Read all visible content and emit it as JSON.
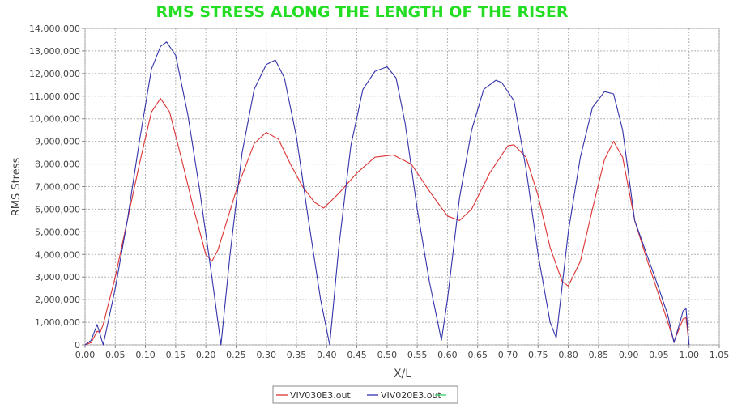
{
  "chart_data": {
    "type": "line",
    "title": "RMS STRESS ALONG THE LENGTH OF THE RISER",
    "xlabel": "X/L",
    "ylabel": "RMS Stress",
    "xlim": [
      0.0,
      1.05
    ],
    "ylim": [
      0,
      14000000
    ],
    "x_ticks": [
      "0.00",
      "0.05",
      "0.10",
      "0.15",
      "0.20",
      "0.25",
      "0.30",
      "0.35",
      "0.40",
      "0.45",
      "0.50",
      "0.55",
      "0.60",
      "0.65",
      "0.70",
      "0.75",
      "0.80",
      "0.85",
      "0.90",
      "0.95",
      "1.00",
      "1.05"
    ],
    "y_ticks": [
      "0",
      "1,000,000",
      "2,000,000",
      "3,000,000",
      "4,000,000",
      "5,000,000",
      "6,000,000",
      "7,000,000",
      "8,000,000",
      "9,000,000",
      "10,000,000",
      "11,000,000",
      "12,000,000",
      "13,000,000",
      "14,000,000"
    ],
    "grid": true,
    "legend_position": "bottom-center",
    "series": [
      {
        "name": "VIV030E3.out",
        "color": "#dd3333",
        "x": [
          0.0,
          0.01,
          0.02,
          0.025,
          0.03,
          0.05,
          0.07,
          0.09,
          0.11,
          0.125,
          0.14,
          0.16,
          0.18,
          0.2,
          0.21,
          0.22,
          0.25,
          0.28,
          0.3,
          0.32,
          0.34,
          0.36,
          0.38,
          0.395,
          0.42,
          0.45,
          0.48,
          0.51,
          0.54,
          0.57,
          0.6,
          0.62,
          0.64,
          0.67,
          0.7,
          0.71,
          0.73,
          0.75,
          0.77,
          0.79,
          0.8,
          0.82,
          0.84,
          0.86,
          0.875,
          0.89,
          0.91,
          0.93,
          0.95,
          0.965,
          0.975,
          0.985,
          0.99,
          0.995,
          1.0
        ],
        "y": [
          0,
          100000,
          600000,
          550000,
          900000,
          3000000,
          5500000,
          8000000,
          10300000,
          10900000,
          10300000,
          8200000,
          6000000,
          4000000,
          3700000,
          4200000,
          6800000,
          8900000,
          9400000,
          9100000,
          8000000,
          7000000,
          6300000,
          6050000,
          6700000,
          7600000,
          8300000,
          8400000,
          8000000,
          6800000,
          5700000,
          5500000,
          6000000,
          7600000,
          8800000,
          8850000,
          8300000,
          6600000,
          4300000,
          2800000,
          2600000,
          3700000,
          6000000,
          8200000,
          9000000,
          8300000,
          5500000,
          3800000,
          2200000,
          1000000,
          150000,
          800000,
          1150000,
          1200000,
          0
        ]
      },
      {
        "name": "VIV020E3.out",
        "color": "#3333aa",
        "x": [
          0.0,
          0.01,
          0.02,
          0.03,
          0.05,
          0.07,
          0.09,
          0.11,
          0.125,
          0.135,
          0.15,
          0.17,
          0.19,
          0.21,
          0.225,
          0.24,
          0.26,
          0.28,
          0.3,
          0.315,
          0.33,
          0.35,
          0.37,
          0.39,
          0.405,
          0.42,
          0.44,
          0.46,
          0.48,
          0.5,
          0.515,
          0.53,
          0.55,
          0.57,
          0.59,
          0.6,
          0.62,
          0.64,
          0.66,
          0.68,
          0.69,
          0.71,
          0.73,
          0.75,
          0.77,
          0.78,
          0.8,
          0.82,
          0.84,
          0.86,
          0.875,
          0.89,
          0.91,
          0.93,
          0.95,
          0.965,
          0.975,
          0.985,
          0.99,
          0.995,
          1.0
        ],
        "y": [
          0,
          200000,
          900000,
          0,
          2500000,
          5500000,
          9000000,
          12200000,
          13200000,
          13400000,
          12800000,
          10200000,
          6800000,
          3000000,
          0,
          4000000,
          8500000,
          11300000,
          12400000,
          12600000,
          11800000,
          9200000,
          5500000,
          2000000,
          0,
          4300000,
          8800000,
          11300000,
          12100000,
          12300000,
          11800000,
          9800000,
          6000000,
          2800000,
          200000,
          2000000,
          6500000,
          9500000,
          11300000,
          11700000,
          11600000,
          10800000,
          7800000,
          4000000,
          1000000,
          300000,
          5000000,
          8300000,
          10500000,
          11200000,
          11100000,
          9500000,
          5500000,
          4000000,
          2500000,
          1300000,
          100000,
          1000000,
          1500000,
          1600000,
          0
        ]
      },
      {
        "name": "",
        "color": "#33cc66",
        "x": [],
        "y": []
      }
    ]
  }
}
